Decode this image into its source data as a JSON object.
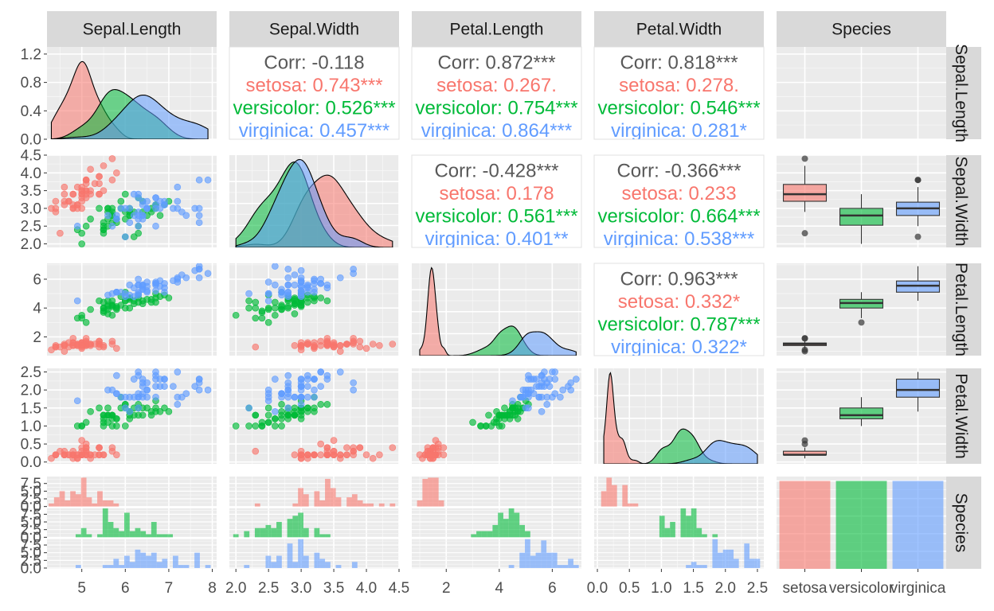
{
  "chart_data": {
    "type": "scatter-matrix",
    "variables": [
      "Sepal.Length",
      "Sepal.Width",
      "Petal.Length",
      "Petal.Width",
      "Species"
    ],
    "species": [
      "setosa",
      "versicolor",
      "virginica"
    ],
    "colors": {
      "setosa": "#F8766D",
      "versicolor": "#00BA38",
      "virginica": "#619CFF"
    },
    "corr_color": "#595959",
    "axes": {
      "x": [
        {
          "range": [
            4.2,
            8.1
          ],
          "ticks": [
            5,
            6,
            7,
            8
          ],
          "labels": [
            "5",
            "6",
            "7",
            "8"
          ]
        },
        {
          "range": [
            1.9,
            4.5
          ],
          "ticks": [
            2.0,
            2.5,
            3.0,
            3.5,
            4.0,
            4.5
          ],
          "labels": [
            "2.0",
            "2.5",
            "3.0",
            "3.5",
            "4.0",
            "4.5"
          ]
        },
        {
          "range": [
            0.7,
            7.1
          ],
          "ticks": [
            2,
            4,
            6
          ],
          "labels": [
            "2",
            "4",
            "6"
          ]
        },
        {
          "range": [
            -0.05,
            2.6
          ],
          "ticks": [
            0.0,
            0.5,
            1.0,
            1.5,
            2.0,
            2.5
          ],
          "labels": [
            "0.0",
            "0.5",
            "1.0",
            "1.5",
            "2.0",
            "2.5"
          ]
        },
        {
          "categories": [
            "setosa",
            "versicolor",
            "virginica"
          ]
        }
      ],
      "y": [
        {
          "range": [
            0,
            1.3
          ],
          "ticks": [
            0.0,
            0.4,
            0.8,
            1.2
          ],
          "labels": [
            "0.0",
            "0.4",
            "0.8",
            "1.2"
          ]
        },
        {
          "range": [
            1.9,
            4.5
          ],
          "ticks": [
            2.0,
            2.5,
            3.0,
            3.5,
            4.0,
            4.5
          ],
          "labels": [
            "2.0",
            "2.5",
            "3.0",
            "3.5",
            "4.0",
            "4.5"
          ]
        },
        {
          "range": [
            0.7,
            7.1
          ],
          "ticks": [
            2,
            4,
            6
          ],
          "labels": [
            "2",
            "4",
            "6"
          ]
        },
        {
          "range": [
            -0.05,
            2.6
          ],
          "ticks": [
            0.0,
            0.5,
            1.0,
            1.5,
            2.0,
            2.5
          ],
          "labels": [
            "0.0",
            "0.5",
            "1.0",
            "1.5",
            "2.0",
            "2.5"
          ]
        },
        {
          "ticks": [
            0.0,
            2.5,
            5.0,
            7.5
          ],
          "labels": [
            "0.0",
            "2.5",
            "5.0",
            "7.5"
          ]
        }
      ]
    },
    "correlations": [
      {
        "row": 0,
        "col": 1,
        "corr": "Corr: -0.118",
        "setosa": "setosa: 0.743***",
        "versicolor": "versicolor: 0.526***",
        "virginica": "virginica: 0.457***"
      },
      {
        "row": 0,
        "col": 2,
        "corr": "Corr: 0.872***",
        "setosa": "setosa: 0.267.",
        "versicolor": "versicolor: 0.754***",
        "virginica": "virginica: 0.864***"
      },
      {
        "row": 0,
        "col": 3,
        "corr": "Corr: 0.818***",
        "setosa": "setosa: 0.278.",
        "versicolor": "versicolor: 0.546***",
        "virginica": "virginica: 0.281*"
      },
      {
        "row": 1,
        "col": 2,
        "corr": "Corr: -0.428***",
        "setosa": "setosa: 0.178",
        "versicolor": "versicolor: 0.561***",
        "virginica": "virginica: 0.401**"
      },
      {
        "row": 1,
        "col": 3,
        "corr": "Corr: -0.366***",
        "setosa": "setosa: 0.233",
        "versicolor": "versicolor: 0.664***",
        "virginica": "virginica: 0.538***"
      },
      {
        "row": 2,
        "col": 3,
        "corr": "Corr: 0.963***",
        "setosa": "setosa: 0.332*",
        "versicolor": "versicolor: 0.787***",
        "virginica": "virginica: 0.322*"
      }
    ],
    "data": {
      "setosa": {
        "sl": [
          5.1,
          4.9,
          4.7,
          4.6,
          5.0,
          5.4,
          4.6,
          5.0,
          4.4,
          4.9,
          5.4,
          4.8,
          4.8,
          4.3,
          5.8,
          5.7,
          5.4,
          5.1,
          5.7,
          5.1,
          5.4,
          5.1,
          4.6,
          5.1,
          4.8,
          5.0,
          5.0,
          5.2,
          5.2,
          4.7,
          4.8,
          5.4,
          5.2,
          5.5,
          4.9,
          5.0,
          5.5,
          4.9,
          4.4,
          5.1,
          5.0,
          4.5,
          4.4,
          5.0,
          5.1,
          4.8,
          5.1,
          4.6,
          5.3,
          5.0
        ],
        "sw": [
          3.5,
          3.0,
          3.2,
          3.1,
          3.6,
          3.9,
          3.4,
          3.4,
          2.9,
          3.1,
          3.7,
          3.4,
          3.0,
          3.0,
          4.0,
          4.4,
          3.9,
          3.5,
          3.8,
          3.8,
          3.4,
          3.7,
          3.6,
          3.3,
          3.4,
          3.0,
          3.4,
          3.5,
          3.4,
          3.2,
          3.1,
          3.4,
          4.1,
          4.2,
          3.1,
          3.2,
          3.5,
          3.6,
          3.0,
          3.4,
          3.5,
          2.3,
          3.2,
          3.5,
          3.8,
          3.0,
          3.8,
          3.2,
          3.7,
          3.3
        ],
        "pl": [
          1.4,
          1.4,
          1.3,
          1.5,
          1.4,
          1.7,
          1.4,
          1.5,
          1.4,
          1.5,
          1.5,
          1.6,
          1.4,
          1.1,
          1.2,
          1.5,
          1.3,
          1.4,
          1.7,
          1.5,
          1.7,
          1.5,
          1.0,
          1.7,
          1.9,
          1.6,
          1.6,
          1.5,
          1.4,
          1.6,
          1.6,
          1.5,
          1.5,
          1.4,
          1.5,
          1.2,
          1.3,
          1.4,
          1.3,
          1.5,
          1.3,
          1.3,
          1.3,
          1.6,
          1.9,
          1.4,
          1.6,
          1.4,
          1.5,
          1.4
        ],
        "pw": [
          0.2,
          0.2,
          0.2,
          0.2,
          0.2,
          0.4,
          0.3,
          0.2,
          0.2,
          0.1,
          0.2,
          0.2,
          0.1,
          0.1,
          0.2,
          0.4,
          0.4,
          0.3,
          0.3,
          0.3,
          0.2,
          0.4,
          0.2,
          0.5,
          0.2,
          0.2,
          0.4,
          0.2,
          0.2,
          0.2,
          0.2,
          0.4,
          0.1,
          0.2,
          0.2,
          0.2,
          0.2,
          0.1,
          0.2,
          0.2,
          0.3,
          0.3,
          0.2,
          0.6,
          0.4,
          0.3,
          0.2,
          0.2,
          0.2,
          0.2
        ]
      },
      "versicolor": {
        "sl": [
          7.0,
          6.4,
          6.9,
          5.5,
          6.5,
          5.7,
          6.3,
          4.9,
          6.6,
          5.2,
          5.0,
          5.9,
          6.0,
          6.1,
          5.6,
          6.7,
          5.6,
          5.8,
          6.2,
          5.6,
          5.9,
          6.1,
          6.3,
          6.1,
          6.4,
          6.6,
          6.8,
          6.7,
          6.0,
          5.7,
          5.5,
          5.5,
          5.8,
          6.0,
          5.4,
          6.0,
          6.7,
          6.3,
          5.6,
          5.5,
          5.5,
          6.1,
          5.8,
          5.0,
          5.6,
          5.7,
          5.7,
          6.2,
          5.1,
          5.7
        ],
        "sw": [
          3.2,
          3.2,
          3.1,
          2.3,
          2.8,
          2.8,
          3.3,
          2.4,
          2.9,
          2.7,
          2.0,
          3.0,
          2.2,
          2.9,
          2.9,
          3.1,
          3.0,
          2.7,
          2.2,
          2.5,
          3.2,
          2.8,
          2.5,
          2.8,
          2.9,
          3.0,
          2.8,
          3.0,
          2.9,
          2.6,
          2.4,
          2.4,
          2.7,
          2.7,
          3.0,
          3.4,
          3.1,
          2.3,
          3.0,
          2.5,
          2.6,
          3.0,
          2.6,
          2.3,
          2.7,
          3.0,
          2.9,
          2.9,
          2.5,
          2.8
        ],
        "pl": [
          4.7,
          4.5,
          4.9,
          4.0,
          4.6,
          4.5,
          4.7,
          3.3,
          4.6,
          3.9,
          3.5,
          4.2,
          4.0,
          4.7,
          3.6,
          4.4,
          4.5,
          4.1,
          4.5,
          3.9,
          4.8,
          4.0,
          4.9,
          4.7,
          4.3,
          4.4,
          4.8,
          5.0,
          4.5,
          3.5,
          3.8,
          3.7,
          3.9,
          5.1,
          4.5,
          4.5,
          4.7,
          4.4,
          4.1,
          4.0,
          4.4,
          4.6,
          4.0,
          3.3,
          4.2,
          4.2,
          4.2,
          4.3,
          3.0,
          4.1
        ],
        "pw": [
          1.4,
          1.5,
          1.5,
          1.3,
          1.5,
          1.3,
          1.6,
          1.0,
          1.3,
          1.4,
          1.0,
          1.5,
          1.0,
          1.4,
          1.3,
          1.4,
          1.5,
          1.0,
          1.5,
          1.1,
          1.8,
          1.3,
          1.5,
          1.2,
          1.3,
          1.4,
          1.4,
          1.7,
          1.5,
          1.0,
          1.1,
          1.0,
          1.2,
          1.6,
          1.5,
          1.6,
          1.5,
          1.3,
          1.3,
          1.3,
          1.2,
          1.4,
          1.2,
          1.0,
          1.3,
          1.2,
          1.3,
          1.3,
          1.1,
          1.3
        ]
      },
      "virginica": {
        "sl": [
          6.3,
          5.8,
          7.1,
          6.3,
          6.5,
          7.6,
          4.9,
          7.3,
          6.7,
          7.2,
          6.5,
          6.4,
          6.8,
          5.7,
          5.8,
          6.4,
          6.5,
          7.7,
          7.7,
          6.0,
          6.9,
          5.6,
          7.7,
          6.3,
          6.7,
          7.2,
          6.2,
          6.1,
          6.4,
          7.2,
          7.4,
          7.9,
          6.4,
          6.3,
          6.1,
          7.7,
          6.3,
          6.4,
          6.0,
          6.9,
          6.7,
          6.9,
          5.8,
          6.8,
          6.7,
          6.7,
          6.3,
          6.5,
          6.2,
          5.9
        ],
        "sw": [
          3.3,
          2.7,
          3.0,
          2.9,
          3.0,
          3.0,
          2.5,
          2.9,
          2.5,
          3.6,
          3.2,
          2.7,
          3.0,
          2.5,
          2.8,
          3.2,
          3.0,
          3.8,
          2.6,
          2.2,
          3.2,
          2.8,
          2.8,
          2.7,
          3.3,
          3.2,
          2.8,
          3.0,
          2.8,
          3.0,
          2.8,
          3.8,
          2.8,
          2.8,
          2.6,
          3.0,
          3.4,
          3.1,
          3.0,
          3.1,
          3.1,
          3.1,
          2.7,
          3.2,
          3.3,
          3.0,
          2.5,
          3.0,
          3.4,
          3.0
        ],
        "pl": [
          6.0,
          5.1,
          5.9,
          5.6,
          5.8,
          6.6,
          4.5,
          6.3,
          5.8,
          6.1,
          5.1,
          5.3,
          5.5,
          5.0,
          5.1,
          5.3,
          5.5,
          6.7,
          6.9,
          5.0,
          5.7,
          4.9,
          6.7,
          4.9,
          5.7,
          6.0,
          4.8,
          4.9,
          5.6,
          5.8,
          6.1,
          6.4,
          5.6,
          5.1,
          5.6,
          6.1,
          5.6,
          5.5,
          4.8,
          5.4,
          5.6,
          5.1,
          5.1,
          5.9,
          5.7,
          5.2,
          5.0,
          5.2,
          5.4,
          5.1
        ],
        "pw": [
          2.5,
          1.9,
          2.1,
          1.8,
          2.2,
          2.1,
          1.7,
          1.8,
          1.8,
          2.5,
          2.0,
          1.9,
          2.1,
          2.0,
          2.4,
          2.3,
          1.8,
          2.2,
          2.3,
          1.5,
          2.3,
          2.0,
          2.0,
          1.8,
          2.1,
          1.8,
          1.8,
          1.8,
          2.1,
          1.6,
          1.9,
          2.0,
          2.2,
          1.5,
          1.4,
          2.3,
          2.4,
          1.8,
          1.8,
          2.1,
          2.4,
          2.3,
          1.9,
          2.3,
          2.5,
          2.3,
          1.9,
          2.0,
          2.3,
          1.8
        ]
      }
    }
  }
}
